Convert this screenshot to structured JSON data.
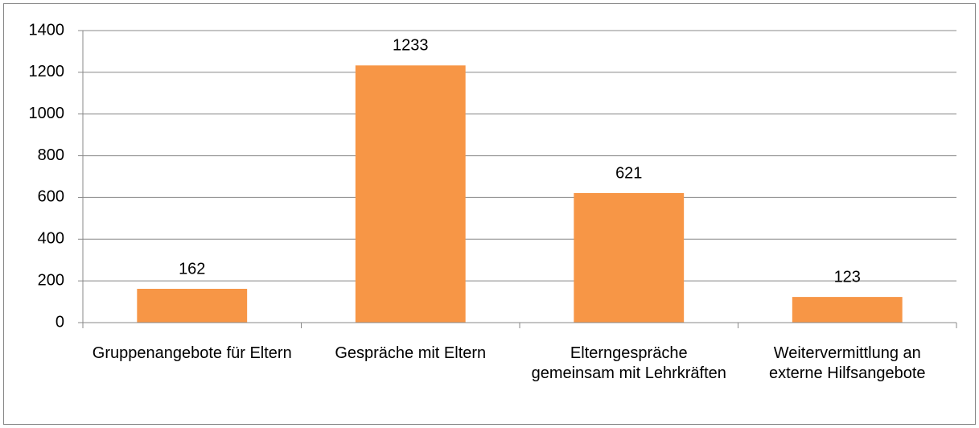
{
  "chart_data": {
    "type": "bar",
    "categories": [
      "Gruppenangebote für Eltern",
      "Gespräche mit Eltern",
      "Elterngespräche gemeinsam mit Lehrkräften",
      "Weitervermittlung an externe Hilfsangebote"
    ],
    "values": [
      162,
      1233,
      621,
      123
    ],
    "color": "#f79646",
    "ylim": [
      0,
      1400
    ],
    "yticks": [
      0,
      200,
      400,
      600,
      800,
      1000,
      1200,
      1400
    ],
    "grid": true
  }
}
